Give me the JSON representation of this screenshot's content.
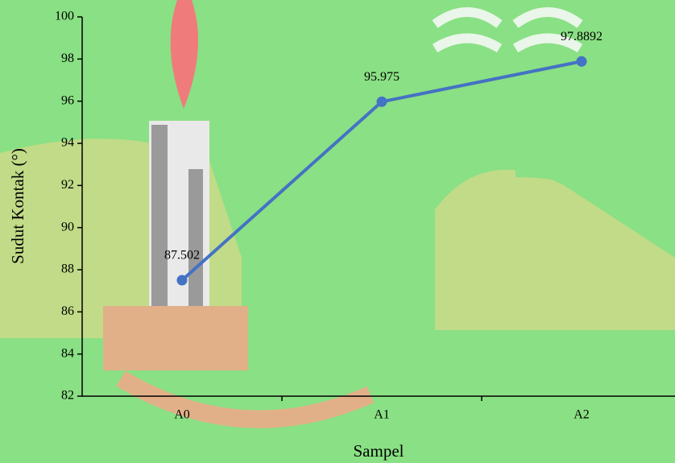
{
  "chart_data": {
    "type": "line",
    "x_label": "Sampel",
    "y_label": "Sudut Kontak (°)",
    "categories": [
      "A0",
      "A1",
      "A2"
    ],
    "values": [
      87.502,
      95.975,
      97.8892
    ],
    "color": "#4472c4",
    "ylim": [
      82,
      100
    ],
    "yticks": [
      82,
      84,
      86,
      88,
      90,
      92,
      94,
      96,
      98,
      100
    ]
  }
}
